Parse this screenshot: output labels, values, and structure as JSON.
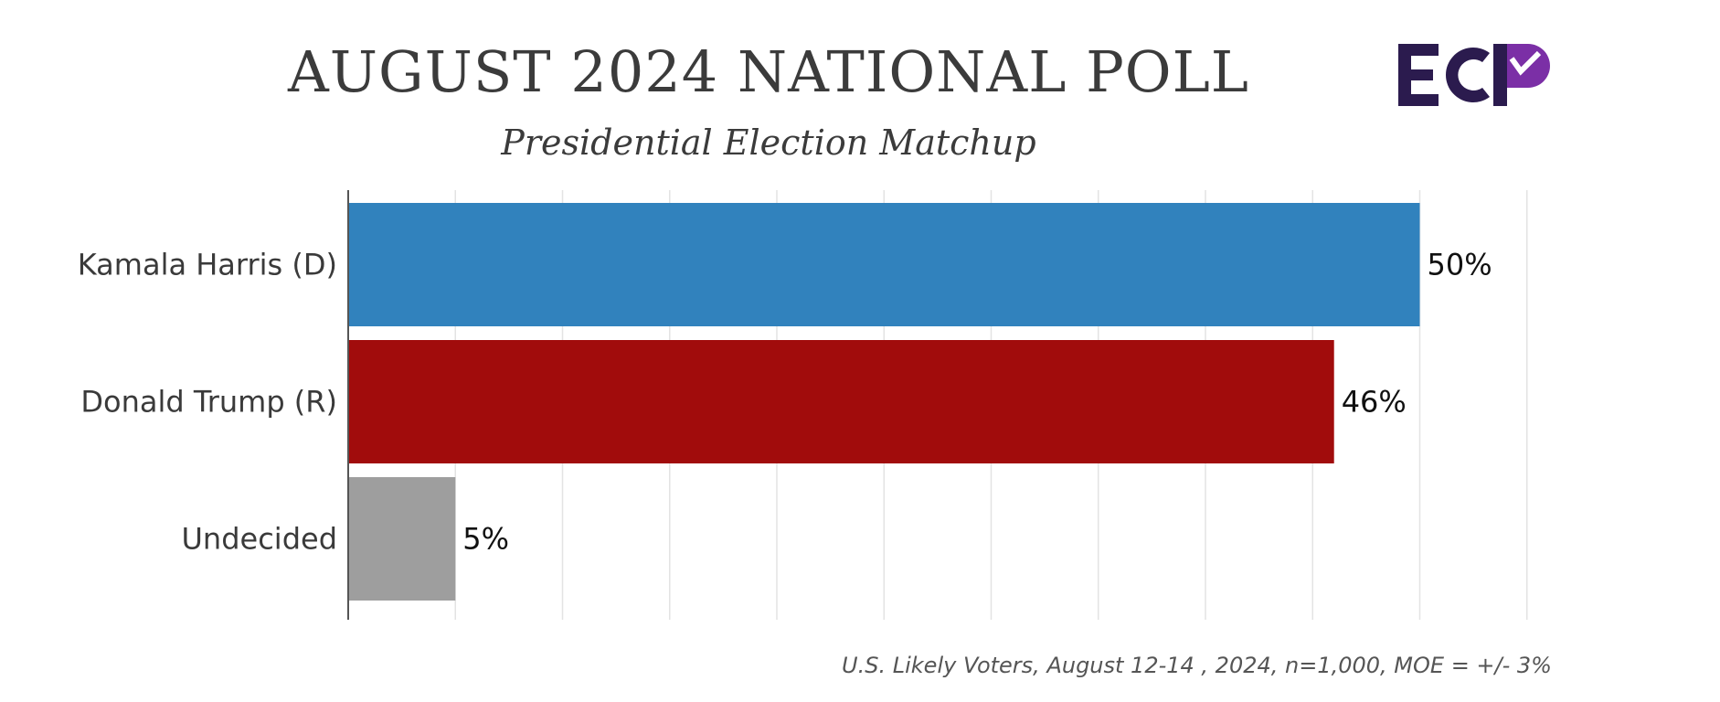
{
  "header": {
    "title": "AUGUST 2024 NATIONAL POLL",
    "subtitle": "Presidential Election Matchup"
  },
  "logo": {
    "text": "ECP",
    "colors": {
      "dark": "#2b1b4e",
      "accent": "#7b2fa6"
    }
  },
  "chart_data": {
    "type": "bar",
    "orientation": "horizontal",
    "categories": [
      "Kamala Harris (D)",
      "Donald Trump (R)",
      "Undecided"
    ],
    "values": [
      50,
      46,
      5
    ],
    "value_labels": [
      "50%",
      "46%",
      "5%"
    ],
    "colors": [
      "#3182bd",
      "#a10c0c",
      "#9e9e9e"
    ],
    "xlim": [
      0,
      55
    ],
    "grid": true,
    "title": "AUGUST 2024 NATIONAL POLL",
    "subtitle": "Presidential Election Matchup",
    "xlabel": "",
    "ylabel": ""
  },
  "footnote": "U.S. Likely Voters, August 12-14 , 2024, n=1,000, MOE = +/- 3%"
}
